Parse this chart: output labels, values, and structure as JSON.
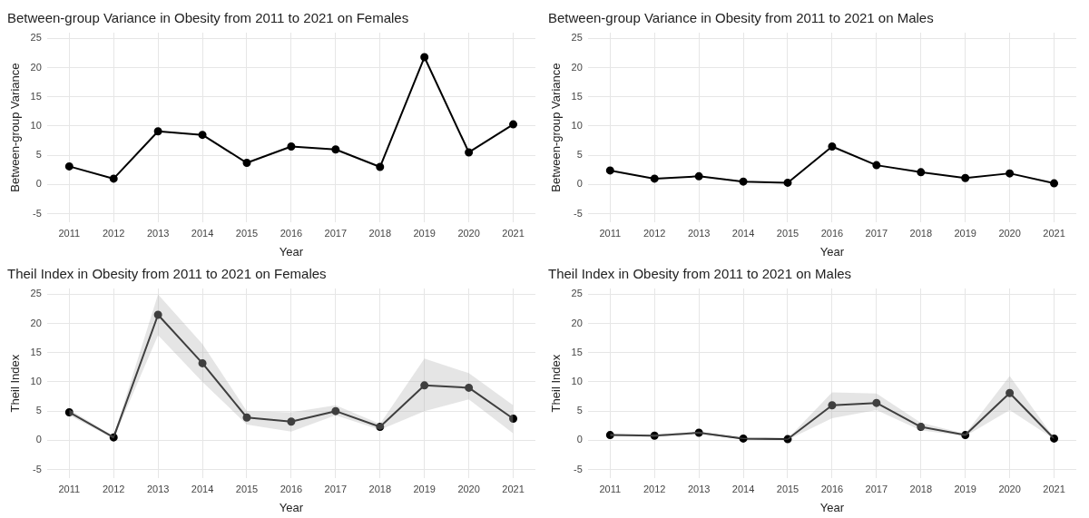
{
  "chart_data": [
    {
      "type": "line",
      "title": "Between-group Variance in Obesity from 2011 to 2021 on Females",
      "xlabel": "Year",
      "ylabel": "Between-group Variance",
      "categories": [
        "2011",
        "2012",
        "2013",
        "2014",
        "2015",
        "2016",
        "2017",
        "2018",
        "2019",
        "2020",
        "2021"
      ],
      "ylim": [
        -6.5,
        26
      ],
      "yticks": [
        -5,
        0,
        5,
        10,
        15,
        20,
        25
      ],
      "grid": true,
      "legend": false,
      "marker": "circle",
      "line_style": "solid",
      "series": [
        {
          "color": "#000000",
          "values": [
            3.1,
            1.0,
            9.1,
            8.5,
            3.7,
            6.5,
            6.0,
            3.0,
            21.8,
            5.5,
            10.3
          ]
        }
      ]
    },
    {
      "type": "line",
      "title": "Between-group Variance in Obesity from 2011 to 2021 on Males",
      "xlabel": "Year",
      "ylabel": "Between-group Variance",
      "categories": [
        "2011",
        "2012",
        "2013",
        "2014",
        "2015",
        "2016",
        "2017",
        "2018",
        "2019",
        "2020",
        "2021"
      ],
      "ylim": [
        -6.5,
        26
      ],
      "yticks": [
        -5,
        0,
        5,
        10,
        15,
        20,
        25
      ],
      "grid": true,
      "legend": false,
      "marker": "circle",
      "line_style": "solid",
      "series": [
        {
          "color": "#000000",
          "values": [
            2.4,
            1.0,
            1.4,
            0.5,
            0.3,
            6.5,
            3.3,
            2.1,
            1.1,
            1.9,
            0.2
          ]
        }
      ]
    },
    {
      "type": "line",
      "title": "Theil Index in Obesity from 2011 to 2021 on Females",
      "xlabel": "Year",
      "ylabel": "Theil Index",
      "categories": [
        "2011",
        "2012",
        "2013",
        "2014",
        "2015",
        "2016",
        "2017",
        "2018",
        "2019",
        "2020",
        "2021"
      ],
      "ylim": [
        -6.5,
        26
      ],
      "yticks": [
        -5,
        0,
        5,
        10,
        15,
        20,
        25
      ],
      "grid": true,
      "legend": false,
      "marker": "circle",
      "line_style": "solid",
      "series": [
        {
          "color": "#000000",
          "values": [
            4.8,
            0.5,
            21.5,
            13.2,
            3.9,
            3.2,
            5.0,
            2.3,
            9.4,
            9.0,
            3.7
          ],
          "lower": [
            4.3,
            0.3,
            18,
            10,
            2.7,
            1.5,
            4.3,
            1.8,
            5,
            7,
            1.2
          ],
          "upper": [
            5.3,
            0.7,
            25,
            16.5,
            5,
            4.8,
            6,
            2.8,
            14,
            11.5,
            6
          ]
        }
      ]
    },
    {
      "type": "line",
      "title": "Theil Index in Obesity from 2011 to 2021 on Males",
      "xlabel": "Year",
      "ylabel": "Theil Index",
      "categories": [
        "2011",
        "2012",
        "2013",
        "2014",
        "2015",
        "2016",
        "2017",
        "2018",
        "2019",
        "2020",
        "2021"
      ],
      "ylim": [
        -6.5,
        26
      ],
      "yticks": [
        -5,
        0,
        5,
        10,
        15,
        20,
        25
      ],
      "grid": true,
      "legend": false,
      "marker": "circle",
      "line_style": "solid",
      "series": [
        {
          "color": "#000000",
          "values": [
            0.9,
            0.8,
            1.3,
            0.3,
            0.2,
            6.0,
            6.4,
            2.3,
            0.9,
            8.1,
            0.3
          ],
          "lower": [
            0.7,
            0.6,
            1.1,
            0.2,
            0.1,
            3.8,
            5.2,
            1.7,
            0.7,
            5.2,
            0.2
          ],
          "upper": [
            1.1,
            1.0,
            1.5,
            0.4,
            0.3,
            8.2,
            8,
            3,
            1.1,
            11,
            0.4
          ]
        }
      ]
    }
  ]
}
